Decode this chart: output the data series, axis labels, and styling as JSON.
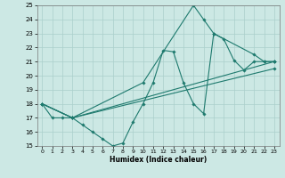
{
  "title": "",
  "xlabel": "Humidex (Indice chaleur)",
  "xlim": [
    -0.5,
    23.5
  ],
  "ylim": [
    15,
    25
  ],
  "yticks": [
    15,
    16,
    17,
    18,
    19,
    20,
    21,
    22,
    23,
    24,
    25
  ],
  "xticks": [
    0,
    1,
    2,
    3,
    4,
    5,
    6,
    7,
    8,
    9,
    10,
    11,
    12,
    13,
    14,
    15,
    16,
    17,
    18,
    19,
    20,
    21,
    22,
    23
  ],
  "bg_color": "#cce8e4",
  "grid_color": "#aacfcb",
  "line_color": "#1e7a6e",
  "line1_x": [
    0,
    1,
    2,
    3,
    4,
    5,
    6,
    7,
    8,
    9,
    10,
    11,
    12,
    13,
    14,
    15,
    16,
    17,
    18,
    19,
    20,
    21,
    22,
    23
  ],
  "line1_y": [
    18,
    17,
    17,
    17,
    16.5,
    16,
    15.5,
    15,
    15.2,
    16.7,
    18,
    19.5,
    21.8,
    21.7,
    19.5,
    18,
    17.3,
    23,
    22.6,
    21.1,
    20.4,
    21,
    21,
    21
  ],
  "line2_x": [
    0,
    3,
    10,
    15,
    16,
    17,
    21,
    22,
    23
  ],
  "line2_y": [
    18,
    17,
    19.5,
    25,
    24,
    23,
    21.5,
    21,
    21
  ],
  "line3_x": [
    0,
    3,
    23
  ],
  "line3_y": [
    18,
    17,
    21
  ],
  "line4_x": [
    0,
    3,
    23
  ],
  "line4_y": [
    18,
    17,
    20.5
  ]
}
